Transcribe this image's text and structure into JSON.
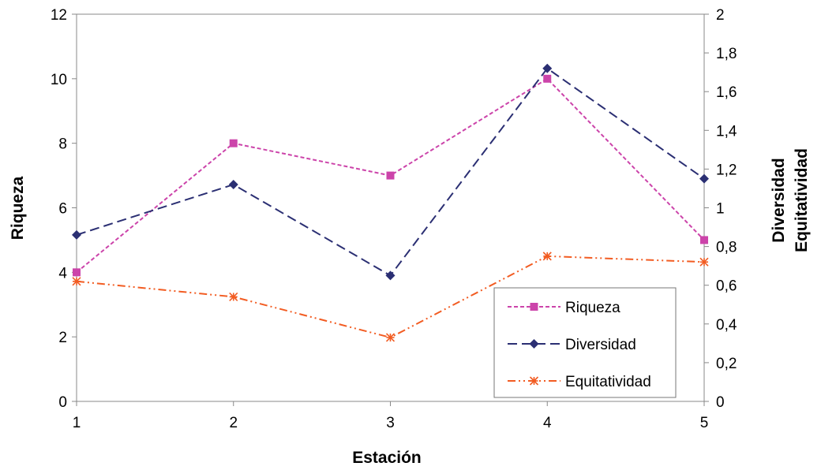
{
  "chart_data": {
    "type": "line",
    "xlabel": "Estación",
    "ylabel_left": "Riqueza",
    "ylabel_right": [
      "Diversidad",
      "Equitatividad"
    ],
    "categories": [
      "1",
      "2",
      "3",
      "4",
      "5"
    ],
    "ylim_left": [
      0,
      12
    ],
    "yticks_left": [
      "0",
      "2",
      "4",
      "6",
      "8",
      "10",
      "12"
    ],
    "ylim_right": [
      0,
      2
    ],
    "yticks_right": [
      "0",
      "0,2",
      "0,4",
      "0,6",
      "0,8",
      "1",
      "1,2",
      "1,4",
      "1,6",
      "1,8",
      "2"
    ],
    "grid": false,
    "legend_position": "bottom-right",
    "series": [
      {
        "name": "Riqueza",
        "axis": "left",
        "color": "#cc44aa",
        "marker": "square",
        "dash": "short-dash",
        "values": [
          4,
          8,
          7,
          10,
          5
        ]
      },
      {
        "name": "Diversidad",
        "axis": "right",
        "color": "#2b2f73",
        "marker": "diamond",
        "dash": "long-dash",
        "values": [
          0.86,
          1.12,
          0.65,
          1.72,
          1.15
        ]
      },
      {
        "name": "Equitatividad",
        "axis": "right",
        "color": "#f25c22",
        "marker": "asterisk",
        "dash": "dash-dot-dot",
        "values": [
          0.62,
          0.54,
          0.33,
          0.75,
          0.72
        ]
      }
    ]
  }
}
